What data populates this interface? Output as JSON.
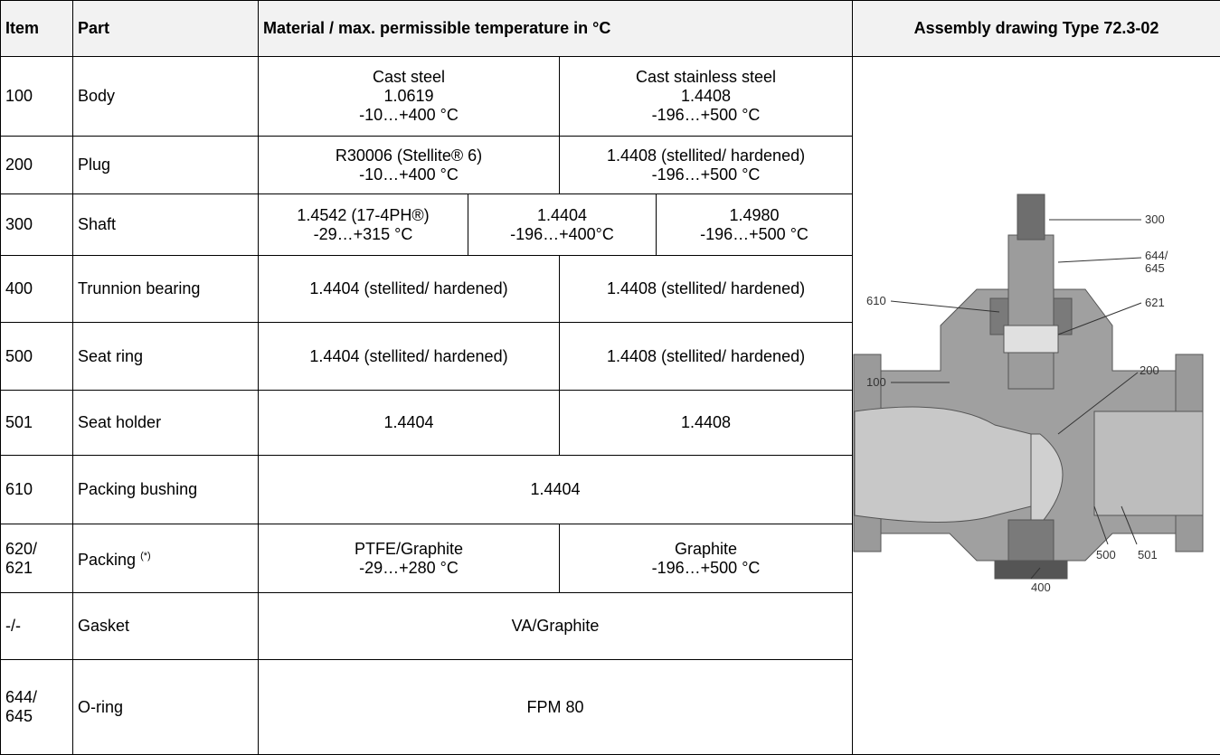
{
  "header": [
    "Item",
    "Part",
    "Material / max. permissible temperature in °C",
    "Assembly drawing Type 72.3-02"
  ],
  "rows": [
    {
      "item": "100",
      "part": "Body",
      "materials": [
        "Cast steel\n1.0619\n-10…+400 °C",
        "Cast stainless steel\n1.4408\n-196…+500 °C"
      ]
    },
    {
      "item": "200",
      "part": "Plug",
      "materials": [
        "R30006 (Stellite® 6)\n-10…+400 °C",
        "1.4408 (stellited/ hardened)\n-196…+500 °C"
      ]
    },
    {
      "item": "300",
      "part": "Shaft",
      "materials": [
        "1.4542 (17-4PH®)\n-29…+315 °C",
        "1.4404\n-196…+400°C",
        "1.4980\n-196…+500 °C"
      ]
    },
    {
      "item": "400",
      "part": "Trunnion bearing",
      "materials": [
        "1.4404 (stellited/ hardened)",
        "1.4408 (stellited/ hardened)"
      ]
    },
    {
      "item": "500",
      "part": "Seat ring",
      "materials": [
        "1.4404 (stellited/ hardened)",
        "1.4408 (stellited/ hardened)"
      ]
    },
    {
      "item": "501",
      "part": "Seat holder",
      "materials": [
        "1.4404",
        "1.4408"
      ]
    },
    {
      "item": "610",
      "part": "Packing bushing",
      "materials": [
        "1.4404"
      ]
    },
    {
      "item": "620/\n621",
      "part": "Packing",
      "note": "(*)",
      "materials": [
        "PTFE/Graphite\n-29…+280 °C",
        "Graphite\n-196…+500 °C"
      ]
    },
    {
      "item": "-/-",
      "part": "Gasket",
      "materials": [
        "VA/Graphite"
      ]
    },
    {
      "item": "644/\n645",
      "part": "O-ring",
      "materials": [
        "FPM 80"
      ]
    }
  ],
  "drawing": {
    "labels": [
      "300",
      "644/\n645",
      "610",
      "621",
      "100",
      "200",
      "500",
      "501",
      "400"
    ]
  }
}
